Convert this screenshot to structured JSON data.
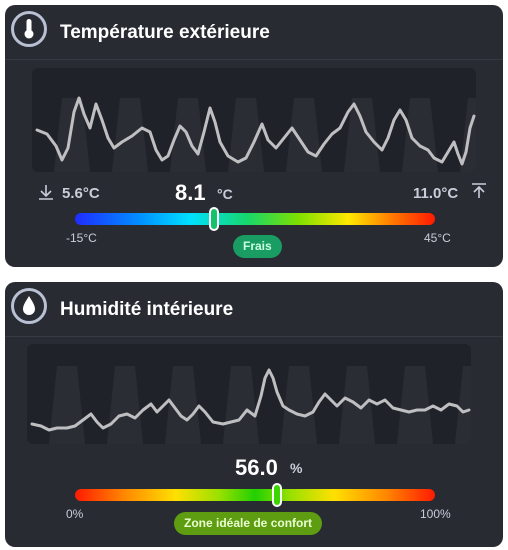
{
  "temperature_card": {
    "title": "Température extérieure",
    "icon": "thermometer-icon",
    "min_value": "5.6°C",
    "max_value": "11.0°C",
    "current_value": "8.1",
    "current_unit": "°C",
    "current_numeric": 8.1,
    "scale_min_label": "-15°C",
    "scale_max_label": "45°C",
    "scale_min": -15,
    "scale_max": 45,
    "status_badge": "Frais",
    "min_icon": "arrow-down-to-line-icon",
    "max_icon": "arrow-up-to-line-icon",
    "colors": {
      "badge": "#1a9d63",
      "marker": "#17c06a"
    }
  },
  "humidity_card": {
    "title": "Humidité intérieure",
    "icon": "water-drop-icon",
    "current_value": "56.0",
    "current_unit": "%",
    "current_numeric": 56.0,
    "scale_min_label": "0%",
    "scale_max_label": "100%",
    "scale_min": 0,
    "scale_max": 100,
    "status_badge": "Zone idéale de confort",
    "colors": {
      "badge": "#5e9d12",
      "marker": "#3bd600"
    }
  },
  "theme": {
    "card_background": "#292b33",
    "graph_background": "#20222a",
    "line": "#bfbfc2"
  }
}
